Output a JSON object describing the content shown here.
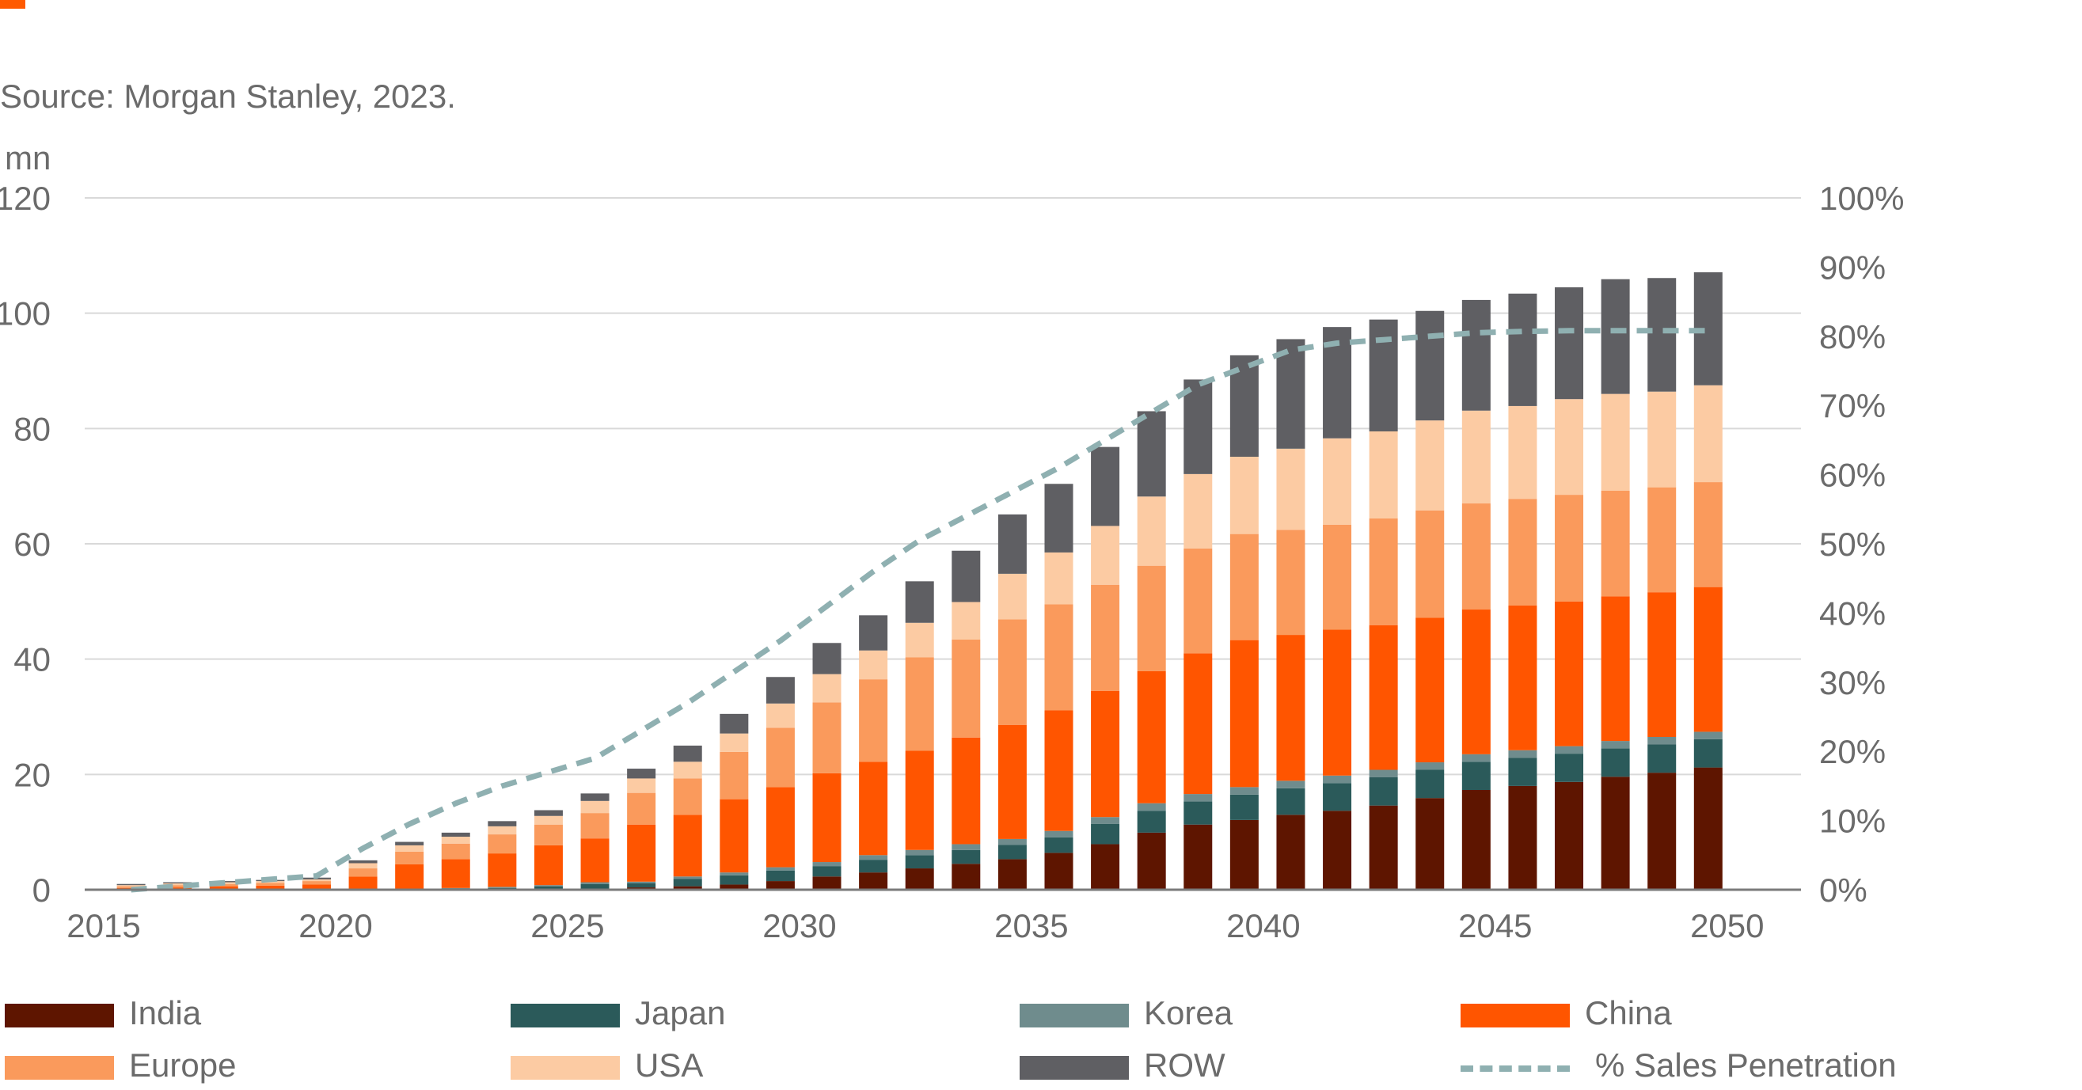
{
  "header": {
    "accent_color": "#ff5a00",
    "source": "Source: Morgan Stanley, 2023."
  },
  "chart_data": {
    "type": "bar",
    "stacked": true,
    "unit_label": "mn",
    "ylim": [
      0,
      120
    ],
    "y_ticks": [
      "0",
      "20",
      "40",
      "60",
      "80",
      "100",
      "120"
    ],
    "y2lim": [
      0,
      100
    ],
    "y2_ticks": [
      "0%",
      "10%",
      "20%",
      "30%",
      "40%",
      "50%",
      "60%",
      "70%",
      "80%",
      "90%",
      "100%"
    ],
    "x_ticks": [
      "2015",
      "2020",
      "2025",
      "2030",
      "2035",
      "2040",
      "2045",
      "2050"
    ],
    "grid": true,
    "legend_position": "bottom",
    "categories": [
      "2016",
      "2017",
      "2018",
      "2019",
      "2020",
      "2021",
      "2022",
      "2023",
      "2024",
      "2025",
      "2026",
      "2027",
      "2028",
      "2029",
      "2030",
      "2031",
      "2032",
      "2033",
      "2034",
      "2035",
      "2036",
      "2037",
      "2038",
      "2039",
      "2040",
      "2041",
      "2042",
      "2043",
      "2044",
      "2045",
      "2046",
      "2047",
      "2048",
      "2049",
      "2050"
    ],
    "series": [
      {
        "name": "India",
        "color": "#5e1500",
        "values": [
          0,
          0,
          0,
          0,
          0,
          0,
          0,
          0,
          0,
          0.1,
          0.2,
          0.4,
          0.6,
          0.9,
          1.5,
          2.3,
          3,
          3.7,
          4.5,
          5.3,
          6.4,
          7.9,
          9.9,
          11.3,
          12.1,
          13,
          13.7,
          14.6,
          15.9,
          17.3,
          18,
          18.7,
          19.6,
          20.3,
          21.2
        ]
      },
      {
        "name": "Japan",
        "color": "#2b5a5a",
        "values": [
          0,
          0,
          0,
          0,
          0,
          0,
          0.1,
          0.2,
          0.3,
          0.5,
          0.8,
          0.7,
          1.3,
          1.6,
          1.8,
          1.8,
          2.2,
          2.3,
          2.4,
          2.5,
          2.7,
          3.5,
          3.8,
          4,
          4.4,
          4.6,
          4.8,
          4.9,
          4.9,
          4.9,
          4.9,
          4.9,
          4.9,
          4.9,
          4.9
        ]
      },
      {
        "name": "Korea",
        "color": "#6f8c8d",
        "values": [
          0,
          0,
          0,
          0,
          0,
          0,
          0,
          0.1,
          0.2,
          0.2,
          0.3,
          0.3,
          0.4,
          0.5,
          0.6,
          0.7,
          0.8,
          0.9,
          1,
          1,
          1.1,
          1.2,
          1.3,
          1.3,
          1.3,
          1.3,
          1.3,
          1.3,
          1.3,
          1.3,
          1.3,
          1.3,
          1.3,
          1.3,
          1.3
        ]
      },
      {
        "name": "China",
        "color": "#ff5500",
        "values": [
          0.3,
          0.4,
          0.6,
          0.7,
          0.9,
          2.3,
          4.3,
          5,
          5.8,
          6.9,
          7.6,
          9.9,
          10.7,
          12.7,
          13.9,
          15.4,
          16.2,
          17.2,
          18.5,
          19.8,
          20.9,
          21.9,
          22.9,
          24.4,
          25.5,
          25.3,
          25.3,
          25.1,
          25.1,
          25.1,
          25.1,
          25.1,
          25.1,
          25.1,
          25.1
        ]
      },
      {
        "name": "Europe",
        "color": "#fa9a5c",
        "values": [
          0.3,
          0.4,
          0.4,
          0.5,
          0.6,
          1.4,
          2.2,
          2.7,
          3.3,
          3.6,
          4.4,
          5.5,
          6.3,
          8.2,
          10.3,
          12.3,
          14.3,
          16.2,
          17,
          18.3,
          18.4,
          18.4,
          18.3,
          18.2,
          18.4,
          18.2,
          18.2,
          18.5,
          18.6,
          18.4,
          18.5,
          18.5,
          18.3,
          18.2,
          18.2
        ]
      },
      {
        "name": "USA",
        "color": "#fccba3",
        "values": [
          0.2,
          0.3,
          0.3,
          0.3,
          0.3,
          0.9,
          1.1,
          1.2,
          1.4,
          1.5,
          2.1,
          2.5,
          2.9,
          3.2,
          4.2,
          4.9,
          5,
          6,
          6.5,
          7.9,
          9,
          10.2,
          12,
          12.9,
          13.4,
          14.1,
          15,
          15.1,
          15.6,
          16.1,
          16.1,
          16.6,
          16.8,
          16.6,
          16.8
        ]
      },
      {
        "name": "ROW",
        "color": "#5f5f63",
        "values": [
          0.2,
          0.2,
          0.2,
          0.2,
          0.3,
          0.5,
          0.6,
          0.7,
          0.9,
          1,
          1.3,
          1.7,
          2.8,
          3.4,
          4.6,
          5.4,
          6.1,
          7.2,
          8.9,
          10.3,
          11.9,
          13.7,
          14.8,
          16.4,
          17.6,
          19,
          19.3,
          19.4,
          19,
          19.2,
          19.5,
          19.4,
          19.9,
          19.7,
          19.6
        ]
      }
    ],
    "line": {
      "name": "% Sales Penetration",
      "color": "#8fb0b1",
      "axis": "right",
      "x": [
        "2016",
        "2017",
        "2018",
        "2019",
        "2020",
        "2021",
        "2022",
        "2023",
        "2024",
        "2025",
        "2026",
        "2027",
        "2028",
        "2029",
        "2030",
        "2031",
        "2032",
        "2033",
        "2034",
        "2035",
        "2036",
        "2037",
        "2038",
        "2039",
        "2040",
        "2041",
        "2042",
        "2043",
        "2044",
        "2045",
        "2046",
        "2047",
        "2048",
        "2049",
        "2050"
      ],
      "values": [
        0,
        0.5,
        1,
        1.5,
        2,
        6,
        9.5,
        12.5,
        15,
        17,
        19,
        23,
        27,
        31.5,
        36,
        41,
        46,
        50.5,
        54,
        57.5,
        61,
        65,
        69,
        73,
        75.5,
        78,
        79,
        79.5,
        80,
        80.5,
        80.7,
        80.8,
        80.8,
        80.8,
        80.8
      ]
    }
  }
}
